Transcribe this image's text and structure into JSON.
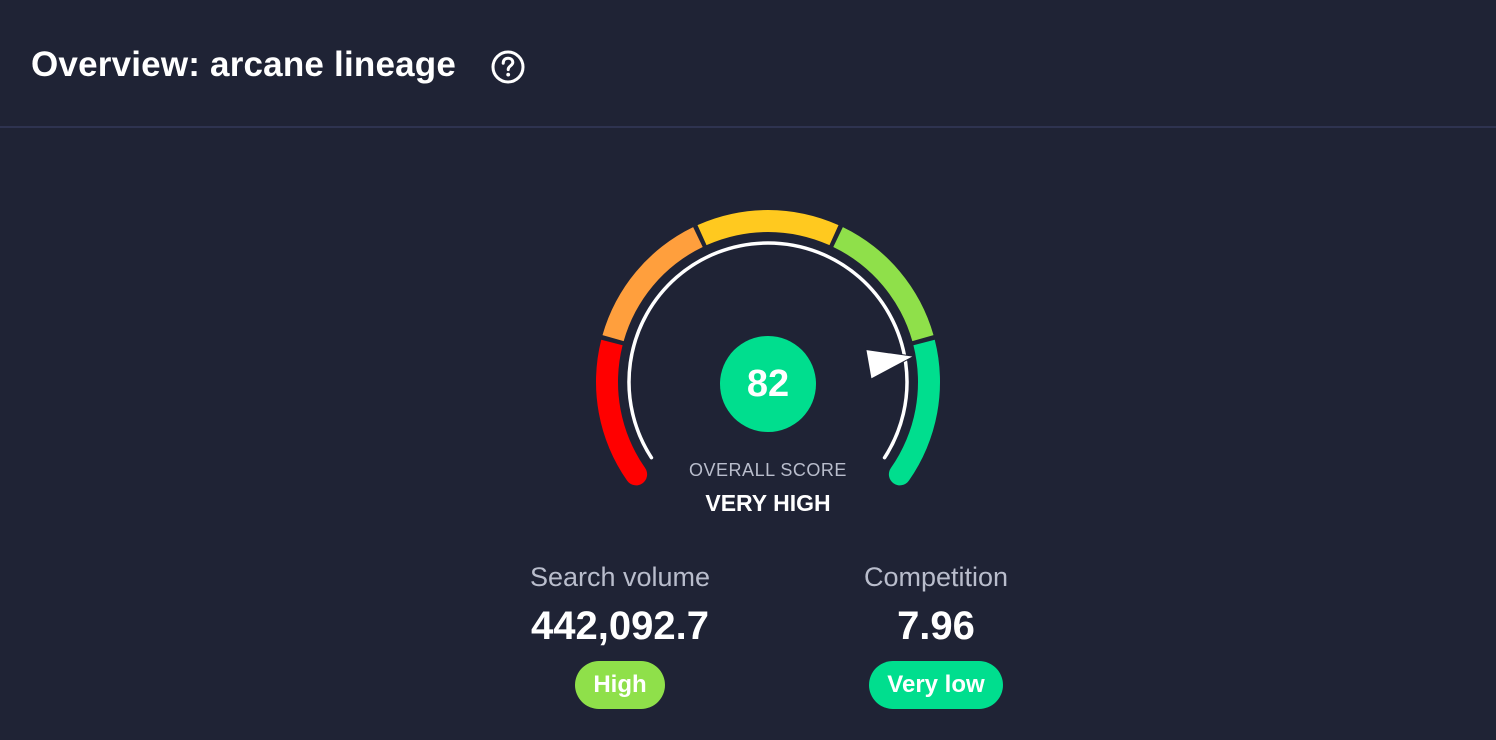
{
  "header": {
    "title": "Overview: arcane lineage",
    "help_icon": "question-circle-icon"
  },
  "gauge": {
    "score": "82",
    "score_value": 82,
    "score_max": 100,
    "label": "OVERALL SCORE",
    "rating": "VERY HIGH",
    "segment_colors": [
      "#ff0000",
      "#ff9f3d",
      "#ffc91f",
      "#8fe04a",
      "#00de8e"
    ],
    "score_color": "#00de8e"
  },
  "metrics": {
    "search_volume": {
      "label": "Search volume",
      "value": "442,092.7",
      "badge": "High",
      "badge_color": "#8fe04a"
    },
    "competition": {
      "label": "Competition",
      "value": "7.96",
      "badge": "Very low",
      "badge_color": "#00de8e"
    }
  }
}
